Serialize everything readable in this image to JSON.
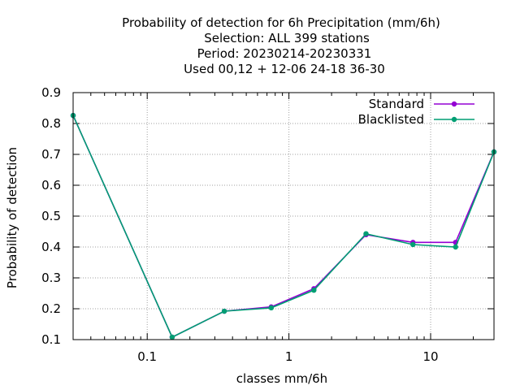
{
  "chart_data": {
    "type": "line",
    "title_lines": [
      "Probability of detection  for 6h Precipitation (mm/6h)",
      "Selection: ALL    399 stations",
      "Period: 20230214-20230331",
      "Used  00,12  + 12-06 24-18 36-30"
    ],
    "xlabel": "classes mm/6h",
    "ylabel": "Probability of detection",
    "x_scale": "log",
    "xlim": [
      0.03,
      28
    ],
    "ylim": [
      0.1,
      0.9
    ],
    "x_ticks": [
      0.1,
      1,
      10
    ],
    "x_tick_labels": [
      "0.1",
      "1",
      "10"
    ],
    "y_ticks": [
      0.1,
      0.2,
      0.3,
      0.4,
      0.5,
      0.6,
      0.7,
      0.8,
      0.9
    ],
    "y_tick_labels": [
      "0.1",
      "0.2",
      "0.3",
      "0.4",
      "0.5",
      "0.6",
      "0.7",
      "0.8",
      "0.9"
    ],
    "grid": true,
    "legend_position": "top-right",
    "x": [
      0.03,
      0.15,
      0.35,
      0.75,
      1.5,
      3.5,
      7.5,
      15,
      28
    ],
    "series": [
      {
        "name": "Standard",
        "color": "#9400d3",
        "values": [
          0.826,
          0.108,
          0.192,
          0.206,
          0.265,
          0.44,
          0.415,
          0.415,
          0.708
        ]
      },
      {
        "name": "Blacklisted",
        "color": "#009e73",
        "values": [
          0.826,
          0.108,
          0.192,
          0.203,
          0.26,
          0.443,
          0.408,
          0.4,
          0.708
        ]
      }
    ]
  }
}
